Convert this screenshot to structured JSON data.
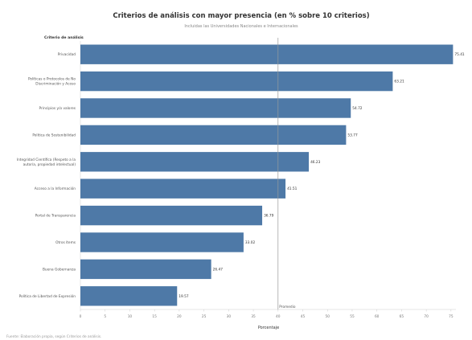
{
  "chart_data": {
    "type": "bar",
    "orientation": "horizontal",
    "title": "Criterios de análisis con mayor presencia (en % sobre 10 criterios)",
    "subtitle": "Incluidas las Universidades Nacionales e Internacionales",
    "dimension_header": "Criterio de análisis",
    "categories": [
      [
        "Privacidad"
      ],
      [
        "Políticas o Protocolos de No",
        "Discriminación y Acoso"
      ],
      [
        "Principios y/o valores"
      ],
      [
        "Política de Sostenibilidad"
      ],
      [
        "Integridad Científica (Respeto a la",
        "autoría, propiedad intelectual)"
      ],
      [
        "Acceso a la Información"
      ],
      [
        "Portal de Transparencia"
      ],
      [
        "Otros ítems"
      ],
      [
        "Buena Gobernanza"
      ],
      [
        "Política de Libertad de Expresión"
      ]
    ],
    "values": [
      75.41,
      63.21,
      54.72,
      53.77,
      46.23,
      41.51,
      36.79,
      33.02,
      26.47,
      19.57
    ],
    "value_labels": [
      "75.41",
      "63.21",
      "54.72",
      "53.77",
      "46.23",
      "41.51",
      "36.79",
      "33.02",
      "26.47",
      "19.57"
    ],
    "xlim": [
      0,
      76
    ],
    "x_ticks": [
      0,
      5,
      10,
      15,
      20,
      25,
      30,
      35,
      40,
      45,
      50,
      55,
      60,
      65,
      70,
      75
    ],
    "xlabel": "Porcentaje",
    "reference_line": {
      "value": 40,
      "label": "Promedio"
    },
    "bar_color": "#4e79a7",
    "grid": false,
    "footer": "Fuente: Elaboración propia, según Criterios de análisis."
  }
}
